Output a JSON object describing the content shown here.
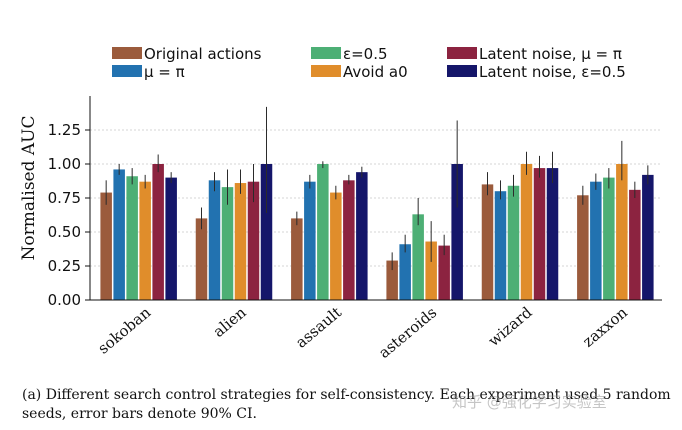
{
  "chart_data": {
    "type": "bar",
    "ylabel": "Normalised AUC",
    "ylim": [
      0,
      1.5
    ],
    "yticks": [
      0.0,
      0.25,
      0.5,
      0.75,
      1.0,
      1.25
    ],
    "ytick_labels": [
      "0.00",
      "0.25",
      "0.50",
      "0.75",
      "1.00",
      "1.25"
    ],
    "grid": "horizontal dotted",
    "legend_position": "top",
    "categories": [
      "sokoban",
      "alien",
      "assault",
      "asteroids",
      "wizard",
      "zaxxon"
    ],
    "series": [
      {
        "name": "Original actions",
        "color": "#9b5b3c",
        "values": [
          0.79,
          0.6,
          0.6,
          0.29,
          0.85,
          0.77
        ],
        "err_low": [
          0.7,
          0.52,
          0.55,
          0.22,
          0.77,
          0.7
        ],
        "err_high": [
          0.88,
          0.68,
          0.65,
          0.35,
          0.94,
          0.84
        ]
      },
      {
        "name": "μ = π",
        "color": "#2272b0",
        "values": [
          0.96,
          0.88,
          0.87,
          0.41,
          0.8,
          0.87
        ],
        "err_low": [
          0.92,
          0.8,
          0.82,
          0.35,
          0.74,
          0.81
        ],
        "err_high": [
          1.0,
          0.94,
          0.92,
          0.48,
          0.88,
          0.93
        ]
      },
      {
        "name": "ε=0.5",
        "color": "#4daf75",
        "values": [
          0.91,
          0.83,
          1.0,
          0.63,
          0.84,
          0.9
        ],
        "err_low": [
          0.85,
          0.7,
          0.97,
          0.55,
          0.76,
          0.82
        ],
        "err_high": [
          0.97,
          0.96,
          1.02,
          0.75,
          0.92,
          0.97
        ]
      },
      {
        "name": "Avoid a0",
        "color": "#e08d2b",
        "values": [
          0.87,
          0.86,
          0.79,
          0.43,
          1.0,
          1.0
        ],
        "err_low": [
          0.82,
          0.78,
          0.74,
          0.28,
          0.92,
          0.88
        ],
        "err_high": [
          0.92,
          0.96,
          0.84,
          0.58,
          1.09,
          1.17
        ]
      },
      {
        "name": "Latent noise, μ = π",
        "color": "#8c2340",
        "values": [
          1.0,
          0.87,
          0.88,
          0.4,
          0.97,
          0.81
        ],
        "err_low": [
          0.94,
          0.72,
          0.85,
          0.33,
          0.9,
          0.75
        ],
        "err_high": [
          1.07,
          1.0,
          0.92,
          0.48,
          1.06,
          0.87
        ]
      },
      {
        "name": "Latent noise, ε=0.5",
        "color": "#15166a",
        "values": [
          0.9,
          1.0,
          0.94,
          1.0,
          0.97,
          0.92
        ],
        "err_low": [
          0.86,
          0.64,
          0.9,
          0.68,
          0.86,
          0.85
        ],
        "err_high": [
          0.94,
          1.42,
          0.98,
          1.32,
          1.09,
          0.99
        ]
      }
    ]
  },
  "caption": {
    "line1": "(a) Different search control strategies for self-consistency.  Each experiment used 5 random",
    "line2": "seeds, error bars denote 90% CI."
  },
  "watermark": "知乎 @强化学习实验室"
}
